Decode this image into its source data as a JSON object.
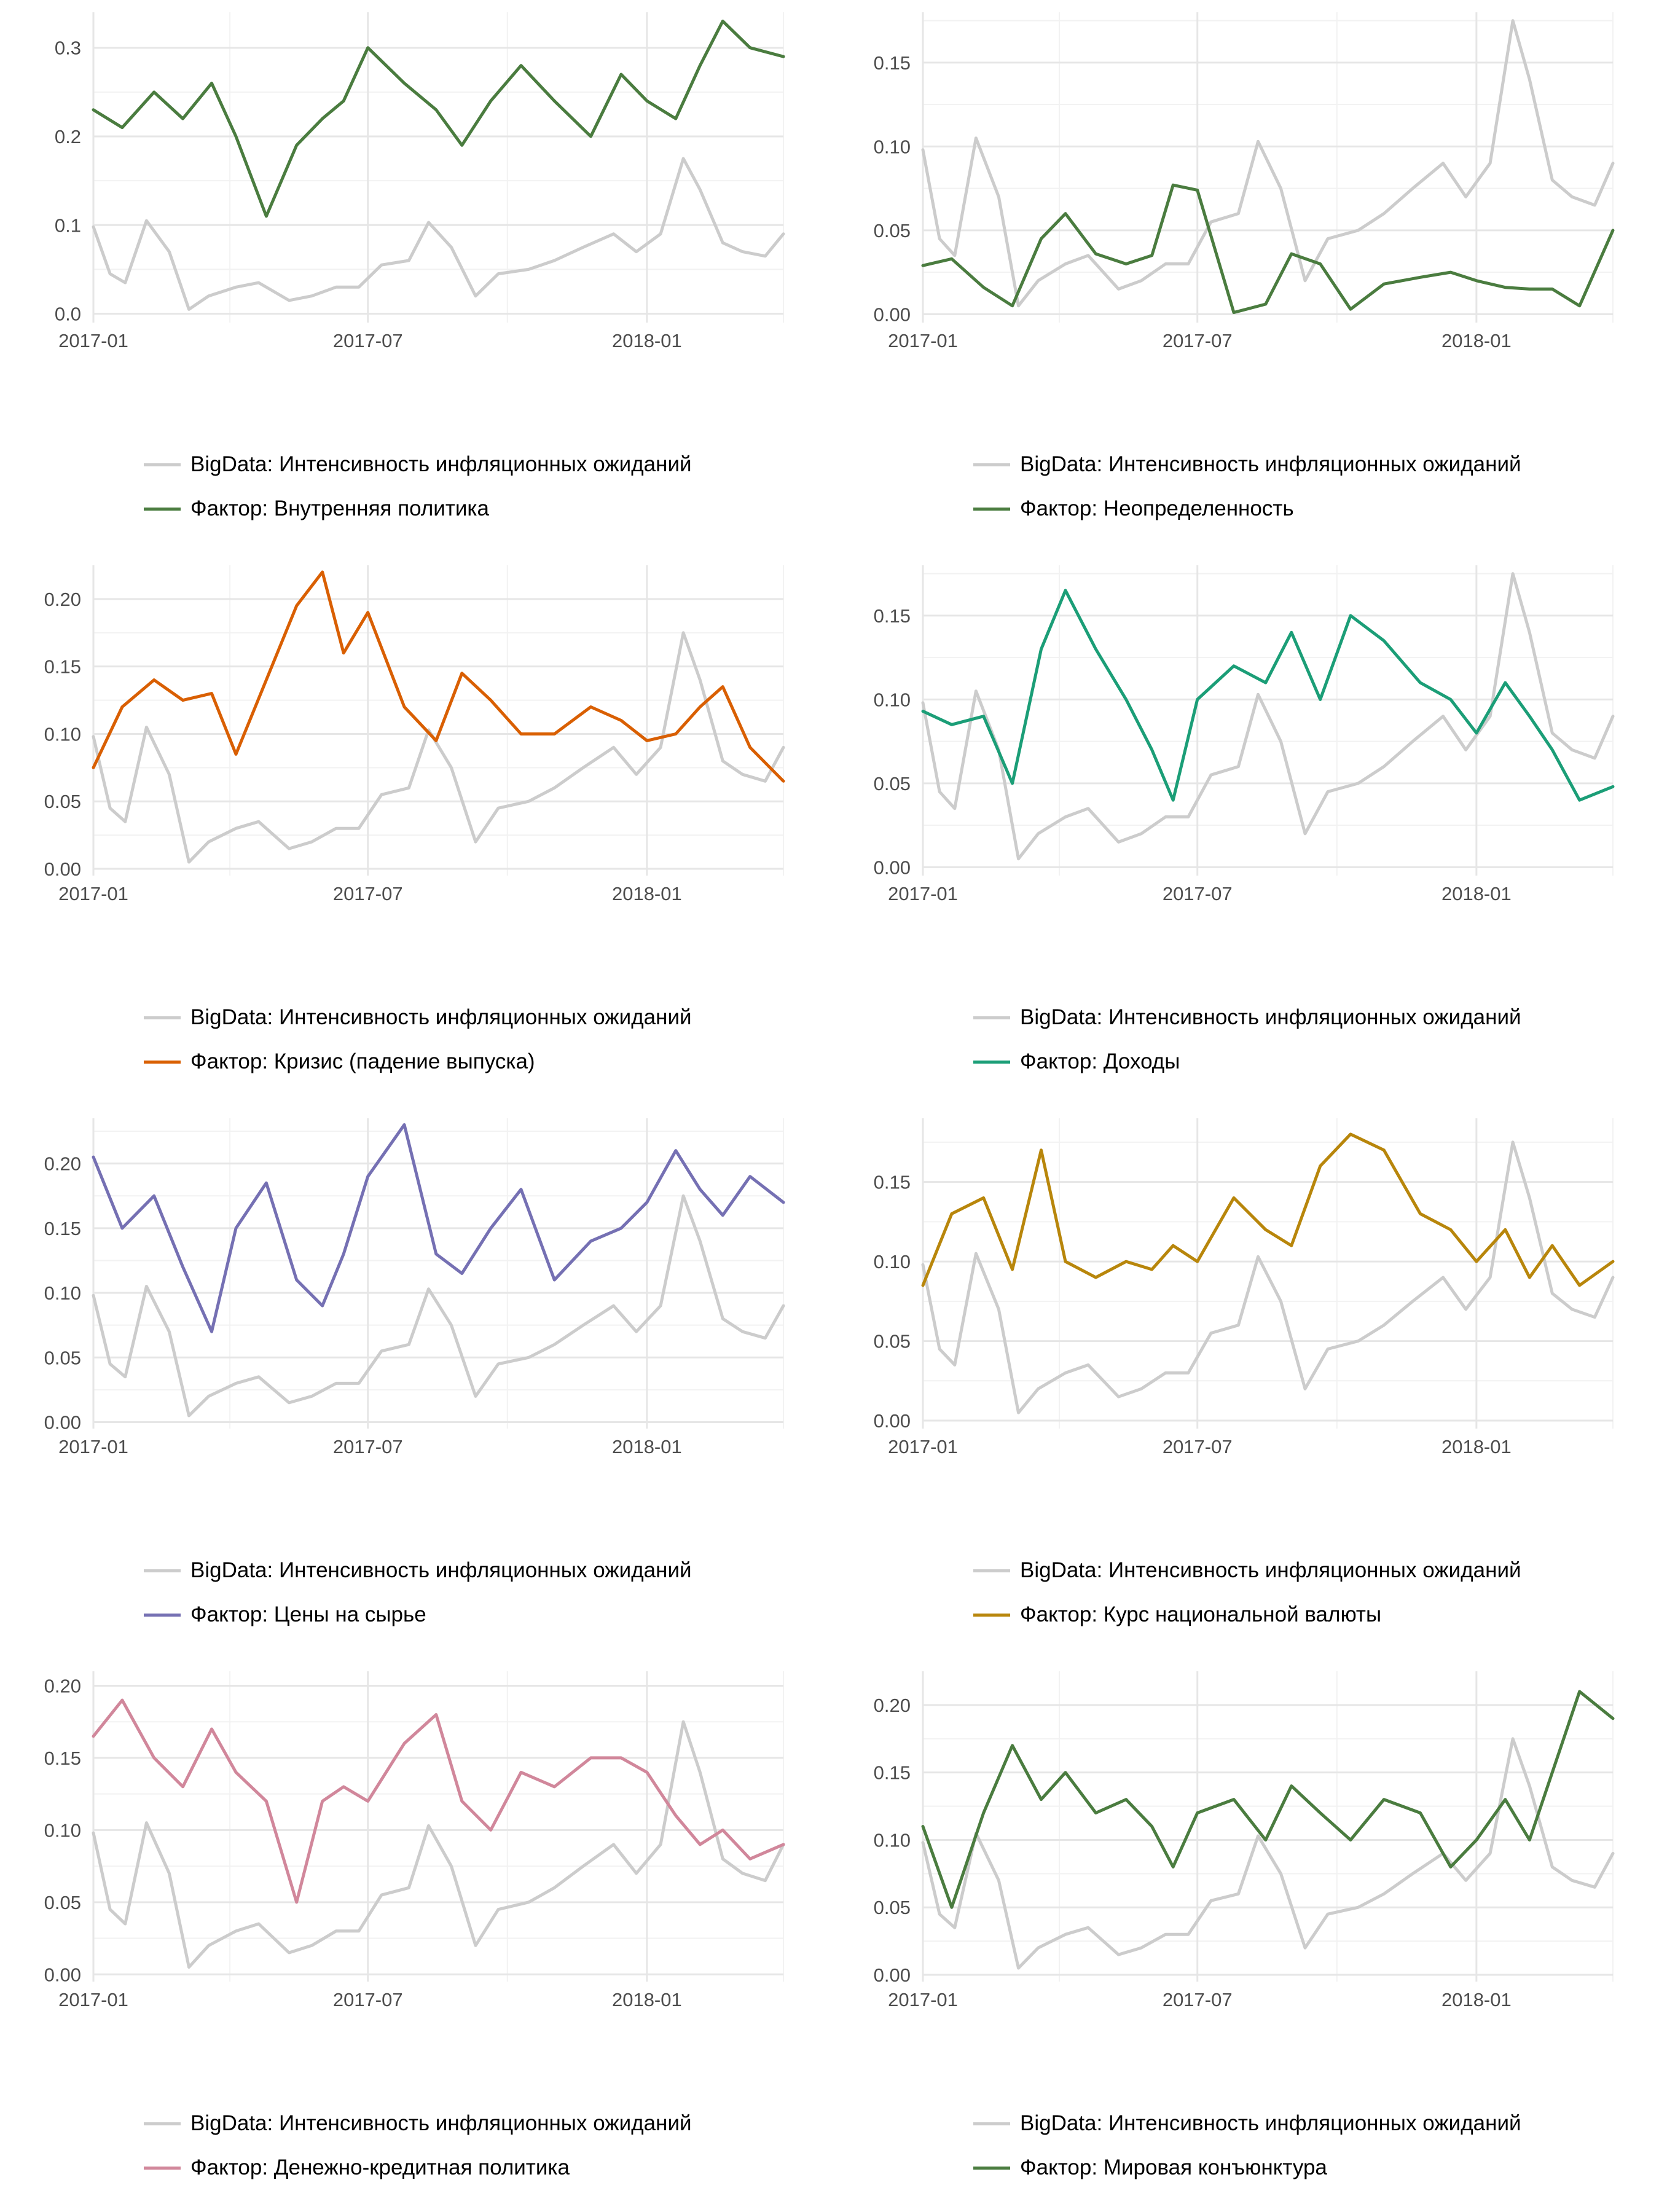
{
  "chart_data": [
    {
      "type": "line",
      "x_ticks": [
        "2017-01",
        "2017-07",
        "2018-01"
      ],
      "y_ticks": [
        "0.0",
        "0.1",
        "0.2",
        "0.3"
      ],
      "ylim": [
        -0.01,
        0.34
      ],
      "xlim": [
        "2017-01-01",
        "2018-04-01"
      ],
      "grid": true,
      "legend_position": "bottom",
      "series": [
        {
          "name": "BigData: Интенсивность инфляционных ожиданий",
          "color": "#cccccc",
          "role": "base"
        },
        {
          "name": "Фактор: Внутренняя политика",
          "color": "#4a7c3f",
          "x": [
            "2017-01-01",
            "2017-01-20",
            "2017-02-10",
            "2017-03-01",
            "2017-03-20",
            "2017-04-05",
            "2017-04-25",
            "2017-05-15",
            "2017-06-01",
            "2017-06-15",
            "2017-07-01",
            "2017-07-25",
            "2017-08-15",
            "2017-09-01",
            "2017-09-20",
            "2017-10-10",
            "2017-11-01",
            "2017-11-25",
            "2017-12-15",
            "2018-01-01",
            "2018-01-20",
            "2018-02-05",
            "2018-02-20",
            "2018-03-10",
            "2018-04-01"
          ],
          "y": [
            0.23,
            0.21,
            0.25,
            0.22,
            0.26,
            0.2,
            0.11,
            0.19,
            0.22,
            0.24,
            0.3,
            0.26,
            0.23,
            0.19,
            0.24,
            0.28,
            0.24,
            0.2,
            0.27,
            0.24,
            0.22,
            0.28,
            0.33,
            0.3,
            0.29
          ]
        }
      ]
    },
    {
      "type": "line",
      "x_ticks": [
        "2017-01",
        "2017-07",
        "2018-01"
      ],
      "y_ticks": [
        "0.00",
        "0.05",
        "0.10",
        "0.15"
      ],
      "ylim": [
        -0.005,
        0.18
      ],
      "xlim": [
        "2017-01-01",
        "2018-04-01"
      ],
      "grid": true,
      "legend_position": "bottom",
      "series": [
        {
          "name": "BigData: Интенсивность инфляционных ожиданий",
          "color": "#cccccc",
          "role": "base"
        },
        {
          "name": "Фактор: Неопределенность",
          "color": "#4a7c3f",
          "x": [
            "2017-01-01",
            "2017-01-20",
            "2017-02-10",
            "2017-03-01",
            "2017-03-20",
            "2017-04-05",
            "2017-04-25",
            "2017-05-15",
            "2017-06-01",
            "2017-06-15",
            "2017-07-01",
            "2017-07-25",
            "2017-08-15",
            "2017-09-01",
            "2017-09-20",
            "2017-10-10",
            "2017-11-01",
            "2017-11-25",
            "2017-12-15",
            "2018-01-01",
            "2018-01-20",
            "2018-02-05",
            "2018-02-20",
            "2018-03-10",
            "2018-04-01"
          ],
          "y": [
            0.029,
            0.033,
            0.016,
            0.005,
            0.045,
            0.06,
            0.036,
            0.03,
            0.035,
            0.077,
            0.074,
            0.001,
            0.006,
            0.036,
            0.03,
            0.003,
            0.018,
            0.022,
            0.025,
            0.02,
            0.016,
            0.015,
            0.015,
            0.005,
            0.05
          ]
        }
      ]
    },
    {
      "type": "line",
      "x_ticks": [
        "2017-01",
        "2017-07",
        "2018-01"
      ],
      "y_ticks": [
        "0.00",
        "0.05",
        "0.10",
        "0.15",
        "0.20"
      ],
      "ylim": [
        -0.005,
        0.225
      ],
      "xlim": [
        "2017-01-01",
        "2018-04-01"
      ],
      "grid": true,
      "legend_position": "bottom",
      "series": [
        {
          "name": "BigData: Интенсивность инфляционных ожиданий",
          "color": "#cccccc",
          "role": "base"
        },
        {
          "name": "Фактор: Кризис (падение выпуска)",
          "color": "#d95f02",
          "x": [
            "2017-01-01",
            "2017-01-20",
            "2017-02-10",
            "2017-03-01",
            "2017-03-20",
            "2017-04-05",
            "2017-04-25",
            "2017-05-15",
            "2017-06-01",
            "2017-06-15",
            "2017-07-01",
            "2017-07-25",
            "2017-08-15",
            "2017-09-01",
            "2017-09-20",
            "2017-10-10",
            "2017-11-01",
            "2017-11-25",
            "2017-12-15",
            "2018-01-01",
            "2018-01-20",
            "2018-02-05",
            "2018-02-20",
            "2018-03-10",
            "2018-04-01"
          ],
          "y": [
            0.075,
            0.12,
            0.14,
            0.125,
            0.13,
            0.085,
            0.14,
            0.195,
            0.22,
            0.16,
            0.19,
            0.12,
            0.095,
            0.145,
            0.125,
            0.1,
            0.1,
            0.12,
            0.11,
            0.095,
            0.1,
            0.12,
            0.135,
            0.09,
            0.065
          ]
        }
      ]
    },
    {
      "type": "line",
      "x_ticks": [
        "2017-01",
        "2017-07",
        "2018-01"
      ],
      "y_ticks": [
        "0.00",
        "0.05",
        "0.10",
        "0.15"
      ],
      "ylim": [
        -0.005,
        0.18
      ],
      "xlim": [
        "2017-01-01",
        "2018-04-01"
      ],
      "grid": true,
      "legend_position": "bottom",
      "series": [
        {
          "name": "BigData: Интенсивность инфляционных ожиданий",
          "color": "#cccccc",
          "role": "base"
        },
        {
          "name": "Фактор: Доходы",
          "color": "#1b9e77",
          "x": [
            "2017-01-01",
            "2017-01-20",
            "2017-02-10",
            "2017-03-01",
            "2017-03-20",
            "2017-04-05",
            "2017-04-25",
            "2017-05-15",
            "2017-06-01",
            "2017-06-15",
            "2017-07-01",
            "2017-07-25",
            "2017-08-15",
            "2017-09-01",
            "2017-09-20",
            "2017-10-10",
            "2017-11-01",
            "2017-11-25",
            "2017-12-15",
            "2018-01-01",
            "2018-01-20",
            "2018-02-05",
            "2018-02-20",
            "2018-03-10",
            "2018-04-01"
          ],
          "y": [
            0.093,
            0.085,
            0.09,
            0.05,
            0.13,
            0.165,
            0.13,
            0.1,
            0.07,
            0.04,
            0.1,
            0.12,
            0.11,
            0.14,
            0.1,
            0.15,
            0.135,
            0.11,
            0.1,
            0.08,
            0.11,
            0.09,
            0.07,
            0.04,
            0.048
          ]
        }
      ]
    },
    {
      "type": "line",
      "x_ticks": [
        "2017-01",
        "2017-07",
        "2018-01"
      ],
      "y_ticks": [
        "0.00",
        "0.05",
        "0.10",
        "0.15",
        "0.20"
      ],
      "ylim": [
        -0.005,
        0.235
      ],
      "xlim": [
        "2017-01-01",
        "2018-04-01"
      ],
      "grid": true,
      "legend_position": "bottom",
      "series": [
        {
          "name": "BigData: Интенсивность инфляционных ожиданий",
          "color": "#cccccc",
          "role": "base"
        },
        {
          "name": "Фактор: Цены на сырье",
          "color": "#7570b3",
          "x": [
            "2017-01-01",
            "2017-01-20",
            "2017-02-10",
            "2017-03-01",
            "2017-03-20",
            "2017-04-05",
            "2017-04-25",
            "2017-05-15",
            "2017-06-01",
            "2017-06-15",
            "2017-07-01",
            "2017-07-25",
            "2017-08-15",
            "2017-09-01",
            "2017-09-20",
            "2017-10-10",
            "2017-11-01",
            "2017-11-25",
            "2017-12-15",
            "2018-01-01",
            "2018-01-20",
            "2018-02-05",
            "2018-02-20",
            "2018-03-10",
            "2018-04-01"
          ],
          "y": [
            0.205,
            0.15,
            0.175,
            0.12,
            0.07,
            0.15,
            0.185,
            0.11,
            0.09,
            0.13,
            0.19,
            0.23,
            0.13,
            0.115,
            0.15,
            0.18,
            0.11,
            0.14,
            0.15,
            0.17,
            0.21,
            0.18,
            0.16,
            0.19,
            0.17
          ]
        }
      ]
    },
    {
      "type": "line",
      "x_ticks": [
        "2017-01",
        "2017-07",
        "2018-01"
      ],
      "y_ticks": [
        "0.00",
        "0.05",
        "0.10",
        "0.15"
      ],
      "ylim": [
        -0.005,
        0.19
      ],
      "xlim": [
        "2017-01-01",
        "2018-04-01"
      ],
      "grid": true,
      "legend_position": "bottom",
      "series": [
        {
          "name": "BigData: Интенсивность инфляционных ожиданий",
          "color": "#cccccc",
          "role": "base"
        },
        {
          "name": "Фактор: Курс национальной валюты",
          "color": "#b8860b",
          "x": [
            "2017-01-01",
            "2017-01-20",
            "2017-02-10",
            "2017-03-01",
            "2017-03-20",
            "2017-04-05",
            "2017-04-25",
            "2017-05-15",
            "2017-06-01",
            "2017-06-15",
            "2017-07-01",
            "2017-07-25",
            "2017-08-15",
            "2017-09-01",
            "2017-09-20",
            "2017-10-10",
            "2017-11-01",
            "2017-11-25",
            "2017-12-15",
            "2018-01-01",
            "2018-01-20",
            "2018-02-05",
            "2018-02-20",
            "2018-03-10",
            "2018-04-01"
          ],
          "y": [
            0.085,
            0.13,
            0.14,
            0.095,
            0.17,
            0.1,
            0.09,
            0.1,
            0.095,
            0.11,
            0.1,
            0.14,
            0.12,
            0.11,
            0.16,
            0.18,
            0.17,
            0.13,
            0.12,
            0.1,
            0.12,
            0.09,
            0.11,
            0.085,
            0.1
          ]
        }
      ]
    },
    {
      "type": "line",
      "x_ticks": [
        "2017-01",
        "2017-07",
        "2018-01"
      ],
      "y_ticks": [
        "0.00",
        "0.05",
        "0.10",
        "0.15",
        "0.20"
      ],
      "ylim": [
        -0.005,
        0.21
      ],
      "xlim": [
        "2017-01-01",
        "2018-04-01"
      ],
      "grid": true,
      "legend_position": "bottom",
      "series": [
        {
          "name": "BigData: Интенсивность инфляционных ожиданий",
          "color": "#cccccc",
          "role": "base"
        },
        {
          "name": "Фактор: Денежно-кредитная политика",
          "color": "#d1879b",
          "x": [
            "2017-01-01",
            "2017-01-20",
            "2017-02-10",
            "2017-03-01",
            "2017-03-20",
            "2017-04-05",
            "2017-04-25",
            "2017-05-15",
            "2017-06-01",
            "2017-06-15",
            "2017-07-01",
            "2017-07-25",
            "2017-08-15",
            "2017-09-01",
            "2017-09-20",
            "2017-10-10",
            "2017-11-01",
            "2017-11-25",
            "2017-12-15",
            "2018-01-01",
            "2018-01-20",
            "2018-02-05",
            "2018-02-20",
            "2018-03-10",
            "2018-04-01"
          ],
          "y": [
            0.165,
            0.19,
            0.15,
            0.13,
            0.17,
            0.14,
            0.12,
            0.05,
            0.12,
            0.13,
            0.12,
            0.16,
            0.18,
            0.12,
            0.1,
            0.14,
            0.13,
            0.15,
            0.15,
            0.14,
            0.11,
            0.09,
            0.1,
            0.08,
            0.09
          ]
        }
      ]
    },
    {
      "type": "line",
      "x_ticks": [
        "2017-01",
        "2017-07",
        "2018-01"
      ],
      "y_ticks": [
        "0.00",
        "0.05",
        "0.10",
        "0.15",
        "0.20"
      ],
      "ylim": [
        -0.005,
        0.225
      ],
      "xlim": [
        "2017-01-01",
        "2018-04-01"
      ],
      "grid": true,
      "legend_position": "bottom",
      "series": [
        {
          "name": "BigData: Интенсивность инфляционных ожиданий",
          "color": "#cccccc",
          "role": "base"
        },
        {
          "name": "Фактор: Мировая конъюнктура",
          "color": "#4a7c3f",
          "x": [
            "2017-01-01",
            "2017-01-20",
            "2017-02-10",
            "2017-03-01",
            "2017-03-20",
            "2017-04-05",
            "2017-04-25",
            "2017-05-15",
            "2017-06-01",
            "2017-06-15",
            "2017-07-01",
            "2017-07-25",
            "2017-08-15",
            "2017-09-01",
            "2017-09-20",
            "2017-10-10",
            "2017-11-01",
            "2017-11-25",
            "2017-12-15",
            "2018-01-01",
            "2018-01-20",
            "2018-02-05",
            "2018-02-20",
            "2018-03-10",
            "2018-04-01"
          ],
          "y": [
            0.11,
            0.05,
            0.12,
            0.17,
            0.13,
            0.15,
            0.12,
            0.13,
            0.11,
            0.08,
            0.12,
            0.13,
            0.1,
            0.14,
            0.12,
            0.1,
            0.13,
            0.12,
            0.08,
            0.1,
            0.13,
            0.1,
            0.15,
            0.21,
            0.19
          ]
        }
      ]
    }
  ],
  "base_series": {
    "name": "BigData: Интенсивность инфляционных ожиданий",
    "color": "#cccccc",
    "x": [
      "2017-01-01",
      "2017-01-12",
      "2017-01-22",
      "2017-02-05",
      "2017-02-20",
      "2017-03-05",
      "2017-03-18",
      "2017-04-05",
      "2017-04-20",
      "2017-05-10",
      "2017-05-25",
      "2017-06-10",
      "2017-06-25",
      "2017-07-10",
      "2017-07-28",
      "2017-08-10",
      "2017-08-25",
      "2017-09-10",
      "2017-09-25",
      "2017-10-15",
      "2017-11-01",
      "2017-11-20",
      "2017-12-10",
      "2017-12-25",
      "2018-01-10",
      "2018-01-25",
      "2018-02-05",
      "2018-02-20",
      "2018-03-05",
      "2018-03-20",
      "2018-04-01"
    ],
    "y": [
      0.098,
      0.045,
      0.035,
      0.105,
      0.07,
      0.005,
      0.02,
      0.03,
      0.035,
      0.015,
      0.02,
      0.03,
      0.03,
      0.055,
      0.06,
      0.103,
      0.075,
      0.02,
      0.045,
      0.05,
      0.06,
      0.075,
      0.09,
      0.07,
      0.09,
      0.175,
      0.14,
      0.08,
      0.07,
      0.065,
      0.09
    ]
  }
}
